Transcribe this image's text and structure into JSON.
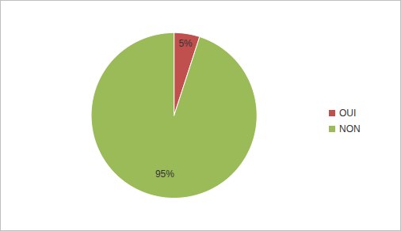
{
  "chart_data": {
    "type": "pie",
    "categories": [
      "OUI",
      "NON"
    ],
    "values": [
      5,
      95
    ],
    "value_labels": [
      "5%",
      "95%"
    ],
    "colors": [
      "#c0504d",
      "#9bbb59"
    ],
    "data_labels": true,
    "legend": "right"
  }
}
